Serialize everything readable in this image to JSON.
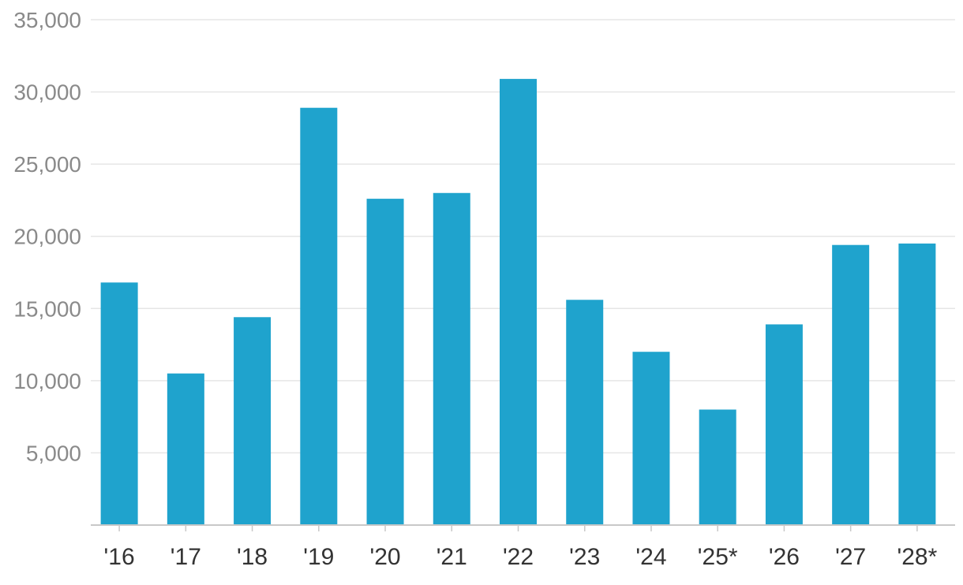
{
  "chart_data": {
    "type": "bar",
    "categories": [
      "'16",
      "'17",
      "'18",
      "'19",
      "'20",
      "'21",
      "'22",
      "'23",
      "'24",
      "'25*",
      "'26",
      "'27",
      "'28*"
    ],
    "values": [
      16800,
      10500,
      14400,
      28900,
      22600,
      23000,
      30900,
      15600,
      12000,
      8000,
      13900,
      19400,
      19500
    ],
    "ylim": [
      0,
      35000
    ],
    "yticks": [
      5000,
      10000,
      15000,
      20000,
      25000,
      30000,
      35000
    ],
    "ytick_labels": [
      "5,000",
      "10,000",
      "15,000",
      "20,000",
      "25,000",
      "30,000",
      "35,000"
    ],
    "grid": true,
    "legend": "none",
    "bar_color": "#1fa3cd",
    "grid_color": "#e6e6e6",
    "axis_color": "#c8c8c8"
  }
}
